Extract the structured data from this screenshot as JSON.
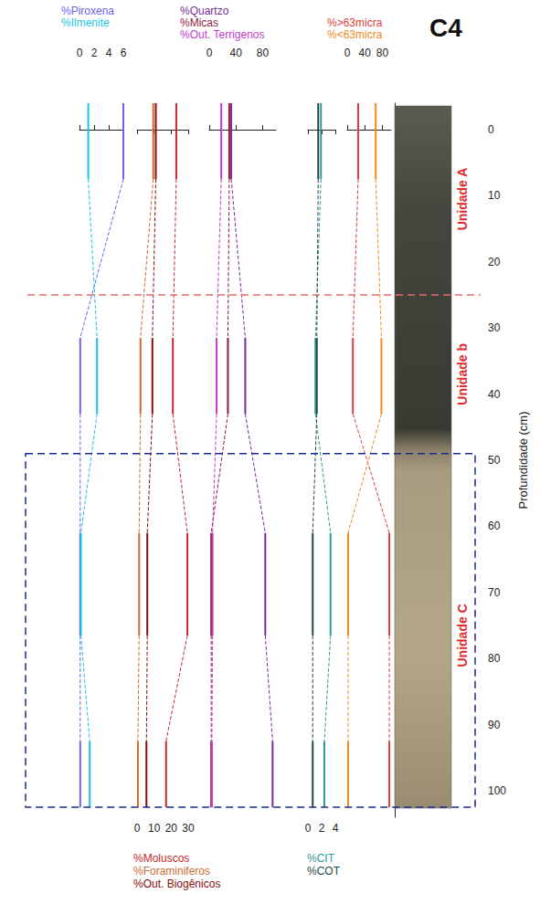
{
  "chart_data": {
    "type": "line",
    "title": "C4",
    "y_label": "Profundidade (cm)",
    "ylim": [
      -4,
      104
    ],
    "yticks": [
      0,
      10,
      20,
      30,
      40,
      50,
      60,
      70,
      80,
      90,
      100
    ],
    "grid": false,
    "intervals": [
      [
        -4,
        7.5
      ],
      [
        31.5,
        43
      ],
      [
        61,
        76.5
      ],
      [
        92.5,
        102.5
      ]
    ],
    "unit_boundaries": [
      25,
      49
    ],
    "unit_labels": [
      "Unidade A",
      "Unidade b",
      "Unidade C"
    ],
    "tracks": [
      {
        "xlim": [
          0,
          6
        ],
        "xticks": [
          0,
          2,
          4,
          6
        ],
        "series": [
          {
            "name": "%Piroxena",
            "color": "#6a64f0",
            "values": [
              6,
              0.1,
              0.1,
              0.1
            ]
          },
          {
            "name": "%Ilmenite",
            "color": "#1cc4e4",
            "values": [
              1.2,
              2.4,
              0.2,
              1.4
            ]
          }
        ]
      },
      {
        "xlim": [
          0,
          30
        ],
        "xticks": [
          0,
          10,
          20,
          30
        ],
        "series": [
          {
            "name": "%Moluscos",
            "color": "#c8282a",
            "values": [
              23,
              21,
              29.5,
              17
            ]
          },
          {
            "name": "%Foraminiferos",
            "color": "#d06a30",
            "values": [
              9.5,
              2,
              1.2,
              0.5
            ]
          },
          {
            "name": "%Out. Biogênicos",
            "color": "#880c0c",
            "values": [
              11,
              9,
              6,
              5.5
            ]
          }
        ]
      },
      {
        "xlim": [
          0,
          100
        ],
        "xticks": [
          0,
          40,
          80
        ],
        "series": [
          {
            "name": "%Quartzo",
            "color": "#7a2c9e",
            "values": [
              33,
              54,
              84,
              95
            ]
          },
          {
            "name": "%Micas",
            "color": "#8b1c3c",
            "values": [
              30,
              28,
              3,
              3
            ]
          },
          {
            "name": "%Out. Terrigenos",
            "color": "#c43ccc",
            "values": [
              18,
              11,
              5,
              4
            ]
          }
        ]
      },
      {
        "xlim": [
          0,
          4
        ],
        "xticks": [
          0,
          2,
          4
        ],
        "series": [
          {
            "name": "%CIT",
            "color": "#2e9a9a",
            "values": [
              1.9,
              1.1,
              3.3,
              2.4
            ]
          },
          {
            "name": "%COT",
            "color": "#1f4a4a",
            "values": [
              1.5,
              1.3,
              0.7,
              0.7
            ]
          }
        ]
      },
      {
        "xlim": [
          0,
          100
        ],
        "xticks": [
          0,
          40,
          80
        ],
        "series": [
          {
            "name": "%>63micra",
            "color": "#e03c3c",
            "values": [
              25,
              13,
              96,
              96
            ]
          },
          {
            "name": "%<63micra",
            "color": "#f08a20",
            "values": [
              65,
              78,
              2,
              2
            ]
          }
        ]
      }
    ]
  }
}
